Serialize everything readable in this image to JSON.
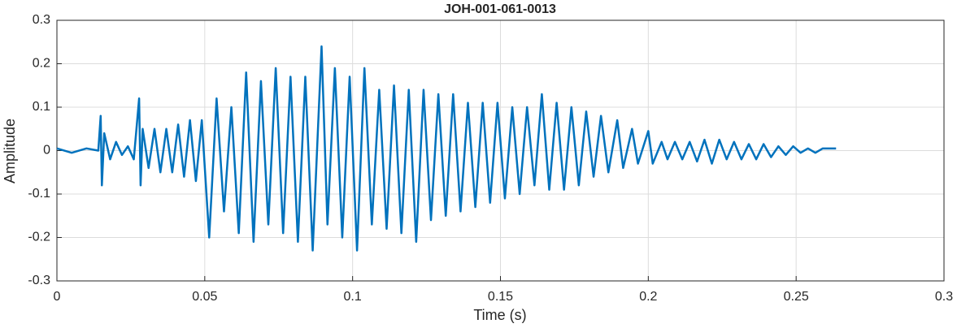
{
  "chart_data": {
    "type": "line",
    "title": "JOH-001-061-0013",
    "x_label": "Time (s)",
    "y_label": "Amplitude",
    "color": "#0072bd",
    "grid": true,
    "xlim": [
      0,
      0.3
    ],
    "xticks": [
      0,
      0.05,
      0.1,
      0.15,
      0.2,
      0.25,
      0.3
    ],
    "ylim": [
      -0.3,
      0.3
    ],
    "yticks": [
      -0.3,
      -0.2,
      -0.1,
      0,
      0.1,
      0.2,
      0.3
    ],
    "x": [
      0,
      0.005,
      0.01,
      0.014,
      0.0148,
      0.0152,
      0.016,
      0.018,
      0.02,
      0.022,
      0.024,
      0.026,
      0.0278,
      0.0283,
      0.029,
      0.031,
      0.033,
      0.035,
      0.037,
      0.039,
      0.041,
      0.043,
      0.045,
      0.047,
      0.049,
      0.0515,
      0.054,
      0.0565,
      0.059,
      0.0615,
      0.064,
      0.0665,
      0.069,
      0.0715,
      0.074,
      0.0765,
      0.079,
      0.0815,
      0.084,
      0.0865,
      0.0895,
      0.0915,
      0.094,
      0.0965,
      0.099,
      0.1015,
      0.104,
      0.1065,
      0.109,
      0.1115,
      0.114,
      0.1165,
      0.119,
      0.1215,
      0.124,
      0.1265,
      0.129,
      0.1315,
      0.134,
      0.1365,
      0.139,
      0.1415,
      0.144,
      0.1465,
      0.149,
      0.1515,
      0.154,
      0.1565,
      0.159,
      0.1615,
      0.164,
      0.1665,
      0.169,
      0.1715,
      0.174,
      0.1765,
      0.179,
      0.1815,
      0.184,
      0.1865,
      0.1895,
      0.1915,
      0.1945,
      0.1965,
      0.2,
      0.2015,
      0.2045,
      0.2065,
      0.209,
      0.2115,
      0.214,
      0.2165,
      0.219,
      0.2215,
      0.224,
      0.2265,
      0.229,
      0.2315,
      0.234,
      0.2365,
      0.239,
      0.2415,
      0.244,
      0.2465,
      0.249,
      0.2515,
      0.254,
      0.2565,
      0.259,
      0.2635
    ],
    "values": [
      0.005,
      -0.005,
      0.005,
      0,
      0.08,
      -0.08,
      0.04,
      -0.02,
      0.02,
      -0.01,
      0.01,
      -0.02,
      0.12,
      -0.08,
      0.05,
      -0.04,
      0.05,
      -0.05,
      0.05,
      -0.05,
      0.06,
      -0.06,
      0.07,
      -0.07,
      0.07,
      -0.2,
      0.12,
      -0.14,
      0.1,
      -0.19,
      0.18,
      -0.21,
      0.16,
      -0.17,
      0.19,
      -0.19,
      0.17,
      -0.21,
      0.17,
      -0.23,
      0.24,
      -0.17,
      0.19,
      -0.2,
      0.17,
      -0.23,
      0.19,
      -0.17,
      0.14,
      -0.18,
      0.15,
      -0.19,
      0.14,
      -0.21,
      0.14,
      -0.16,
      0.13,
      -0.15,
      0.13,
      -0.14,
      0.11,
      -0.13,
      0.11,
      -0.12,
      0.11,
      -0.11,
      0.1,
      -0.1,
      0.1,
      -0.08,
      0.13,
      -0.09,
      0.11,
      -0.09,
      0.1,
      -0.08,
      0.09,
      -0.06,
      0.08,
      -0.05,
      0.07,
      -0.04,
      0.05,
      -0.03,
      0.045,
      -0.03,
      0.02,
      -0.02,
      0.02,
      -0.02,
      0.02,
      -0.025,
      0.025,
      -0.03,
      0.025,
      -0.02,
      0.02,
      -0.02,
      0.015,
      -0.02,
      0.015,
      -0.015,
      0.01,
      -0.01,
      0.01,
      -0.005,
      0.005,
      -0.005,
      0.005,
      0.005
    ]
  }
}
